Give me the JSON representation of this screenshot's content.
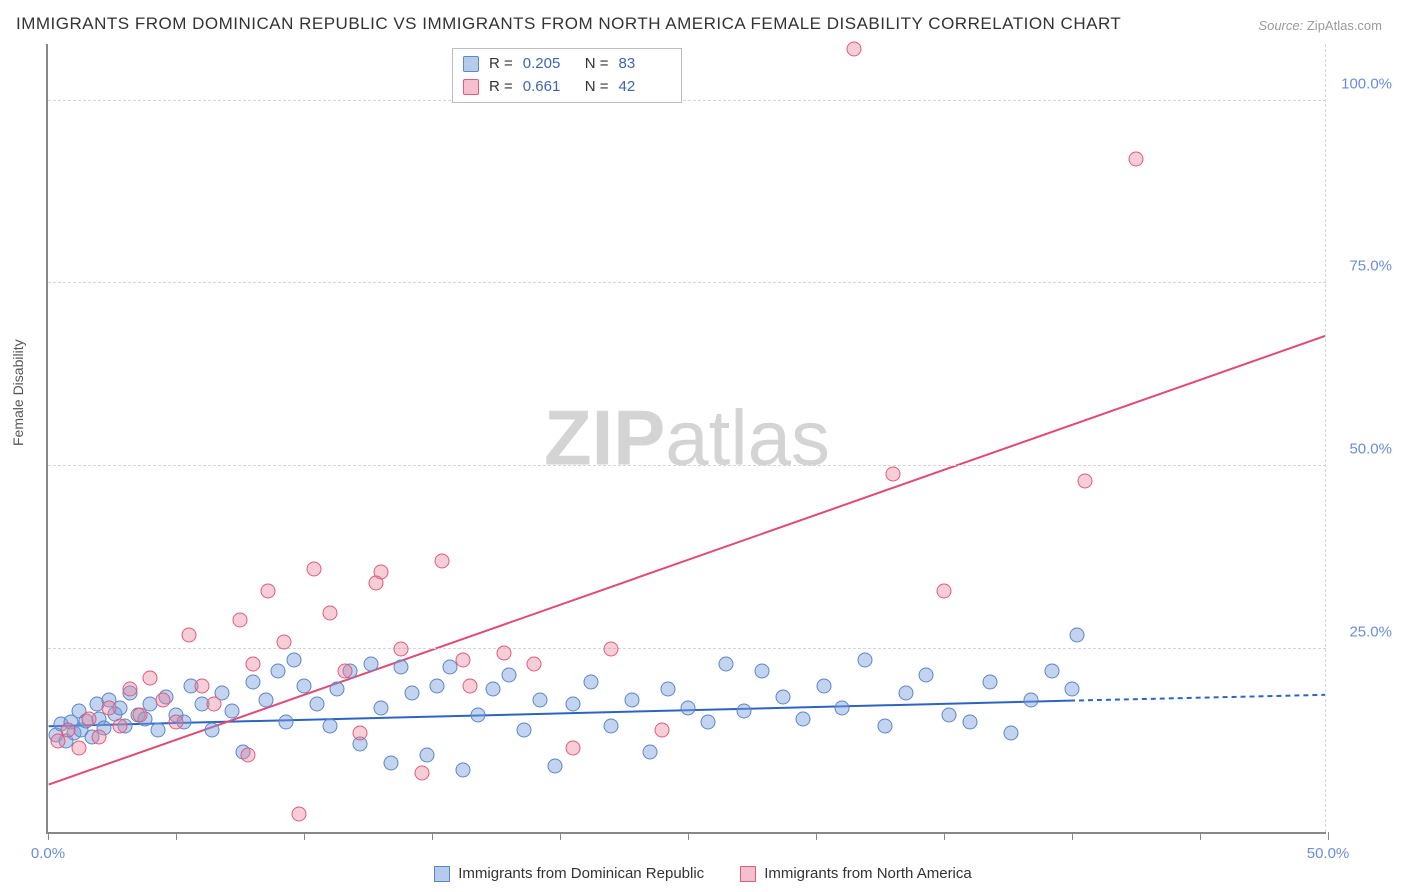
{
  "title": "IMMIGRANTS FROM DOMINICAN REPUBLIC VS IMMIGRANTS FROM NORTH AMERICA FEMALE DISABILITY CORRELATION CHART",
  "source_label": "Source:",
  "source_value": "ZipAtlas.com",
  "watermark_a": "ZIP",
  "watermark_b": "atlas",
  "y_axis_title": "Female Disability",
  "chart": {
    "type": "scatter",
    "xlim": [
      0,
      50
    ],
    "ylim": [
      0,
      108
    ],
    "x_ticks": [
      0,
      5,
      10,
      15,
      20,
      25,
      30,
      35,
      40,
      45,
      50
    ],
    "y_gridlines": [
      25,
      50,
      75,
      100
    ],
    "x_labels": {
      "0": "0.0%",
      "50": "50.0%"
    },
    "y_labels": {
      "25": "25.0%",
      "50": "50.0%",
      "75": "75.0%",
      "100": "100.0%"
    },
    "background_color": "#ffffff",
    "grid_color": "#d5d5d5",
    "axis_color": "#888888",
    "label_color": "#6b8dd6",
    "marker_radius": 7.5,
    "series": [
      {
        "name": "Immigrants from Dominican Republic",
        "color_fill": "rgba(120,160,220,0.45)",
        "color_stroke": "#5b86c7",
        "R": "0.205",
        "N": "83",
        "regression": {
          "x1": 0,
          "y1": 14.5,
          "x2": 40,
          "y2": 18.0,
          "x2_ext": 50,
          "y2_ext": 18.8,
          "stroke": "#2d64c4",
          "width": 2,
          "dash_ext": "5,4"
        },
        "points": [
          [
            0.3,
            13.2
          ],
          [
            0.5,
            14.8
          ],
          [
            0.7,
            12.5
          ],
          [
            0.9,
            15.0
          ],
          [
            1.0,
            13.5
          ],
          [
            1.2,
            16.5
          ],
          [
            1.3,
            14.0
          ],
          [
            1.5,
            15.2
          ],
          [
            1.7,
            13.0
          ],
          [
            1.9,
            17.5
          ],
          [
            2.0,
            15.5
          ],
          [
            2.2,
            14.2
          ],
          [
            2.4,
            18.0
          ],
          [
            2.6,
            16.2
          ],
          [
            2.8,
            17.0
          ],
          [
            3.0,
            14.5
          ],
          [
            3.2,
            19.0
          ],
          [
            3.5,
            16.0
          ],
          [
            3.8,
            15.5
          ],
          [
            4.0,
            17.5
          ],
          [
            4.3,
            14.0
          ],
          [
            4.6,
            18.5
          ],
          [
            5.0,
            16.0
          ],
          [
            5.3,
            15.0
          ],
          [
            5.6,
            20.0
          ],
          [
            6.0,
            17.5
          ],
          [
            6.4,
            14.0
          ],
          [
            6.8,
            19.0
          ],
          [
            7.2,
            16.5
          ],
          [
            7.6,
            11.0
          ],
          [
            8.0,
            20.5
          ],
          [
            8.5,
            18.0
          ],
          [
            9.0,
            22.0
          ],
          [
            9.3,
            15.0
          ],
          [
            9.6,
            23.5
          ],
          [
            10.0,
            20.0
          ],
          [
            10.5,
            17.5
          ],
          [
            11.0,
            14.5
          ],
          [
            11.3,
            19.5
          ],
          [
            11.8,
            22.0
          ],
          [
            12.2,
            12.0
          ],
          [
            12.6,
            23.0
          ],
          [
            13.0,
            17.0
          ],
          [
            13.4,
            9.5
          ],
          [
            13.8,
            22.5
          ],
          [
            14.2,
            19.0
          ],
          [
            14.8,
            10.5
          ],
          [
            15.2,
            20.0
          ],
          [
            15.7,
            22.5
          ],
          [
            16.2,
            8.5
          ],
          [
            16.8,
            16.0
          ],
          [
            17.4,
            19.5
          ],
          [
            18.0,
            21.5
          ],
          [
            18.6,
            14.0
          ],
          [
            19.2,
            18.0
          ],
          [
            19.8,
            9.0
          ],
          [
            20.5,
            17.5
          ],
          [
            21.2,
            20.5
          ],
          [
            22.0,
            14.5
          ],
          [
            22.8,
            18.0
          ],
          [
            23.5,
            11.0
          ],
          [
            24.2,
            19.5
          ],
          [
            25.0,
            17.0
          ],
          [
            25.8,
            15.0
          ],
          [
            26.5,
            23.0
          ],
          [
            27.2,
            16.5
          ],
          [
            27.9,
            22.0
          ],
          [
            28.7,
            18.5
          ],
          [
            29.5,
            15.5
          ],
          [
            30.3,
            20.0
          ],
          [
            31.0,
            17.0
          ],
          [
            31.9,
            23.5
          ],
          [
            32.7,
            14.5
          ],
          [
            33.5,
            19.0
          ],
          [
            34.3,
            21.5
          ],
          [
            35.2,
            16.0
          ],
          [
            36.0,
            15.0
          ],
          [
            36.8,
            20.5
          ],
          [
            37.6,
            13.5
          ],
          [
            38.4,
            18.0
          ],
          [
            39.2,
            22.0
          ],
          [
            40.0,
            19.5
          ],
          [
            40.2,
            27.0
          ]
        ]
      },
      {
        "name": "Immigrants from North America",
        "color_fill": "rgba(235,130,155,0.40)",
        "color_stroke": "#e05b7d",
        "R": "0.661",
        "N": "42",
        "regression": {
          "x1": 0,
          "y1": 6.5,
          "x2": 50,
          "y2": 68.0,
          "stroke": "#e04a75",
          "width": 2
        },
        "points": [
          [
            0.4,
            12.5
          ],
          [
            0.8,
            14.0
          ],
          [
            1.2,
            11.5
          ],
          [
            1.6,
            15.5
          ],
          [
            2.0,
            13.0
          ],
          [
            2.4,
            17.0
          ],
          [
            2.8,
            14.5
          ],
          [
            3.2,
            19.5
          ],
          [
            3.6,
            16.0
          ],
          [
            4.0,
            21.0
          ],
          [
            4.5,
            18.0
          ],
          [
            5.0,
            15.0
          ],
          [
            5.5,
            27.0
          ],
          [
            6.0,
            20.0
          ],
          [
            6.5,
            17.5
          ],
          [
            7.5,
            29.0
          ],
          [
            8.0,
            23.0
          ],
          [
            8.6,
            33.0
          ],
          [
            9.2,
            26.0
          ],
          [
            9.8,
            2.5
          ],
          [
            10.4,
            36.0
          ],
          [
            11.0,
            30.0
          ],
          [
            11.6,
            22.0
          ],
          [
            12.2,
            13.5
          ],
          [
            13.0,
            35.5
          ],
          [
            13.8,
            25.0
          ],
          [
            14.6,
            8.0
          ],
          [
            15.4,
            37.0
          ],
          [
            16.5,
            20.0
          ],
          [
            17.8,
            24.5
          ],
          [
            19.0,
            23.0
          ],
          [
            20.5,
            11.5
          ],
          [
            22.0,
            25.0
          ],
          [
            24.0,
            14.0
          ],
          [
            33.0,
            49.0
          ],
          [
            31.5,
            107.0
          ],
          [
            35.0,
            33.0
          ],
          [
            40.5,
            48.0
          ],
          [
            42.5,
            92.0
          ],
          [
            7.8,
            10.5
          ],
          [
            12.8,
            34.0
          ],
          [
            16.2,
            23.5
          ]
        ]
      }
    ]
  },
  "legend_top_rows": [
    {
      "swatch": "blue",
      "R": "0.205",
      "N": "83"
    },
    {
      "swatch": "pink",
      "R": "0.661",
      "N": "42"
    }
  ],
  "legend_bottom": [
    {
      "swatch": "blue",
      "label": "Immigrants from Dominican Republic"
    },
    {
      "swatch": "pink",
      "label": "Immigrants from North America"
    }
  ],
  "legend_labels": {
    "R": "R =",
    "N": "N ="
  }
}
